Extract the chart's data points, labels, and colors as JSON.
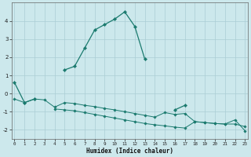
{
  "xlabel": "Humidex (Indice chaleur)",
  "background_color": "#cce8ec",
  "grid_color": "#aacdd4",
  "line_color": "#1a7a6e",
  "x": [
    0,
    1,
    2,
    3,
    4,
    5,
    6,
    7,
    8,
    9,
    10,
    11,
    12,
    13,
    14,
    15,
    16,
    17,
    18,
    19,
    20,
    21,
    22,
    23
  ],
  "line1": [
    0.6,
    -0.5,
    -0.3,
    null,
    null,
    1.3,
    1.5,
    2.5,
    3.5,
    3.8,
    4.1,
    4.5,
    3.7,
    1.9,
    null,
    null,
    -0.9,
    -0.65,
    null,
    null,
    null,
    null,
    null,
    null
  ],
  "line2": [
    -0.3,
    -0.5,
    -0.3,
    -0.35,
    -0.75,
    -0.5,
    -0.55,
    -0.65,
    -0.72,
    -0.82,
    -0.9,
    -1.0,
    -1.1,
    -1.2,
    -1.3,
    -1.05,
    -1.15,
    -1.1,
    -1.55,
    -1.6,
    -1.65,
    -1.68,
    -1.68,
    -1.82
  ],
  "line3": [
    null,
    null,
    null,
    null,
    -0.85,
    -0.9,
    -0.95,
    -1.05,
    -1.15,
    -1.25,
    -1.35,
    -1.45,
    -1.55,
    -1.65,
    -1.72,
    -1.78,
    -1.85,
    -1.9,
    -1.55,
    -1.6,
    -1.65,
    -1.68,
    -1.45,
    -2.05
  ],
  "xlim": [
    0,
    23
  ],
  "ylim": [
    -2.5,
    5.0
  ],
  "yticks": [
    -2,
    -1,
    0,
    1,
    2,
    3,
    4
  ],
  "xticks": [
    0,
    1,
    2,
    3,
    4,
    5,
    6,
    7,
    8,
    9,
    10,
    11,
    12,
    13,
    14,
    15,
    16,
    17,
    18,
    19,
    20,
    21,
    22,
    23
  ]
}
